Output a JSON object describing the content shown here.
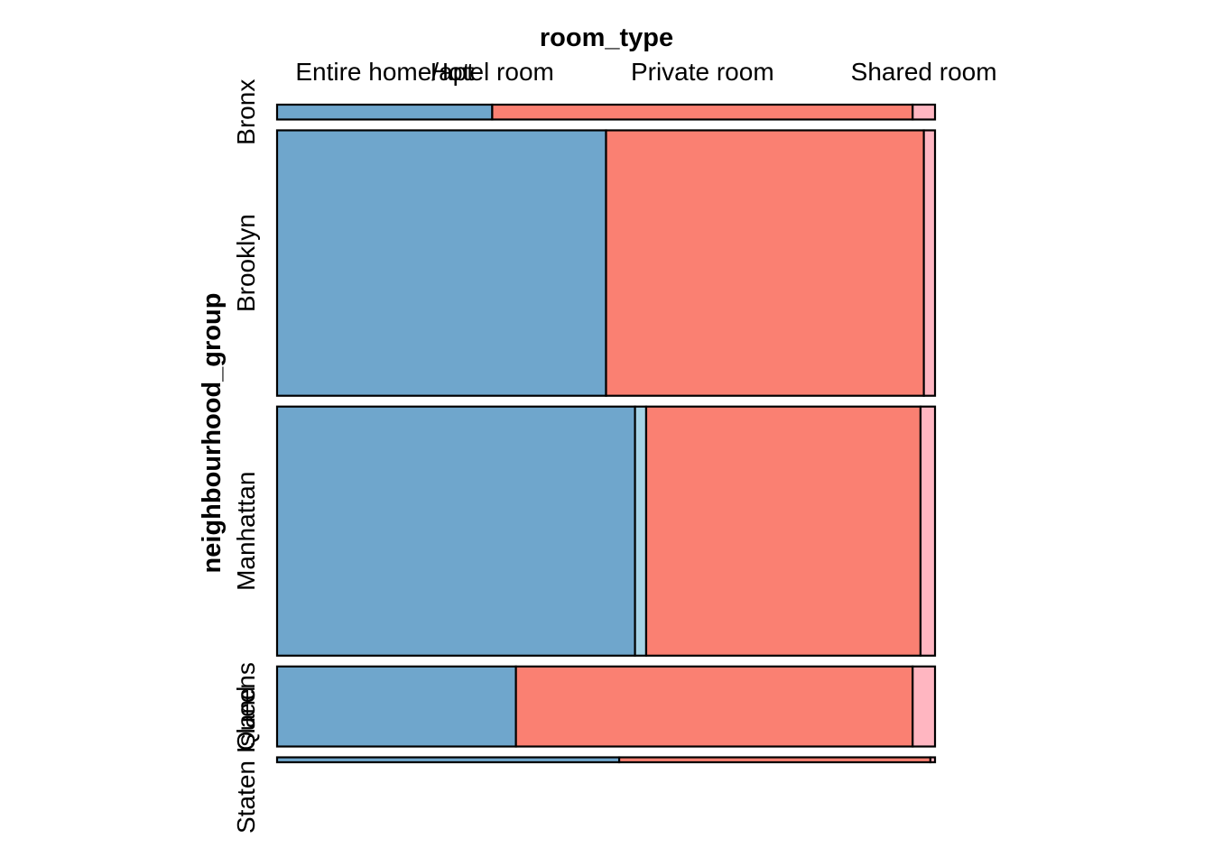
{
  "chart_data": {
    "type": "mosaic",
    "xlabel": "room_type",
    "ylabel": "neighbourhood_group",
    "categories_x": [
      "Entire home/apt",
      "Hotel room",
      "Private room",
      "Shared room"
    ],
    "categories_y": [
      "Bronx",
      "Brooklyn",
      "Manhattan",
      "Queens",
      "Staten Island"
    ],
    "colors": {
      "Entire home/apt": "#6fa6cc",
      "Hotel room": "#a6d3e6",
      "Private room": "#fa8072",
      "Shared room": "#ffb6c1"
    },
    "row_shares": [
      0.0229,
      0.4089,
      0.3837,
      0.1233,
      0.0076
    ],
    "rows": [
      {
        "group": "Bronx",
        "shares": [
          0.327,
          0.0,
          0.639,
          0.034
        ]
      },
      {
        "group": "Brooklyn",
        "shares": [
          0.5,
          0.0,
          0.483,
          0.017
        ]
      },
      {
        "group": "Manhattan",
        "shares": [
          0.544,
          0.017,
          0.417,
          0.022
        ]
      },
      {
        "group": "Queens",
        "shares": [
          0.363,
          0.0,
          0.603,
          0.034
        ]
      },
      {
        "group": "Staten Island",
        "shares": [
          0.52,
          0.0,
          0.473,
          0.007
        ]
      }
    ]
  }
}
